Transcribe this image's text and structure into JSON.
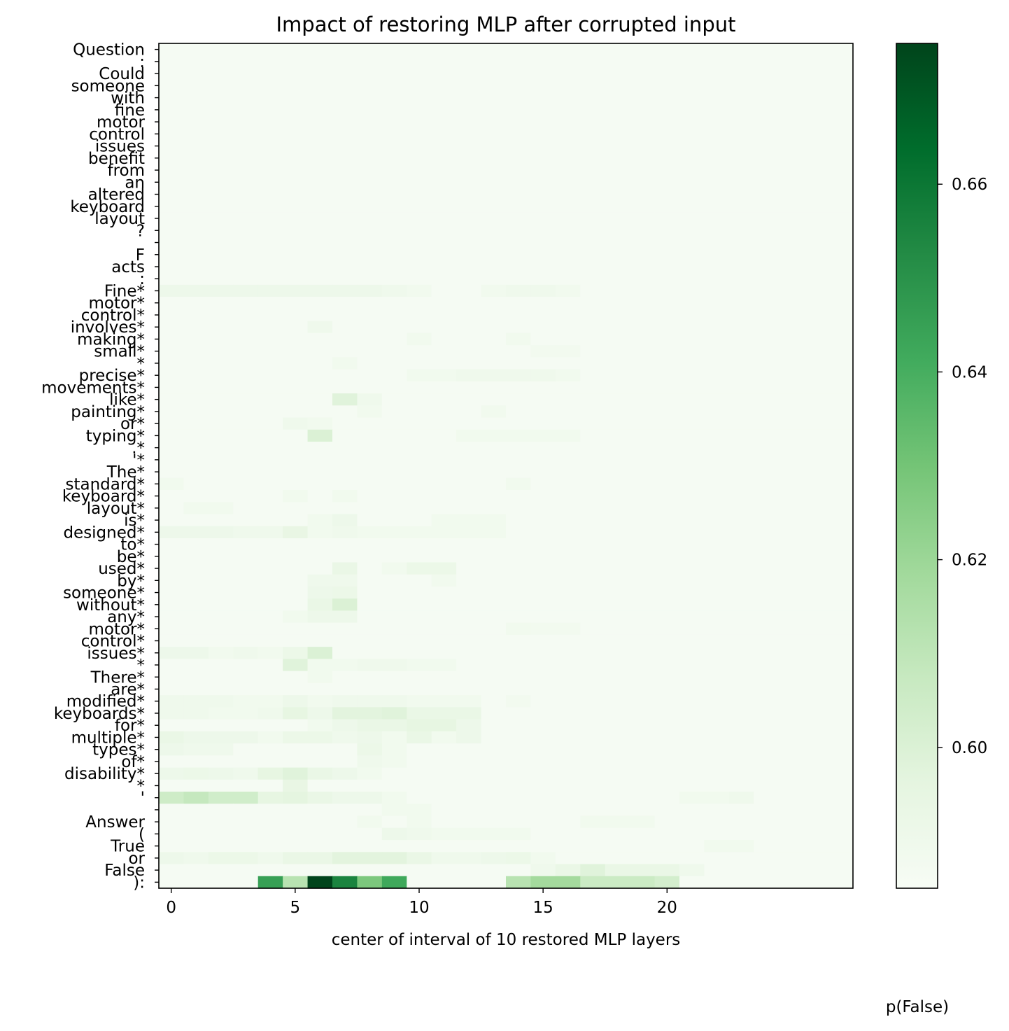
{
  "chart_data": {
    "type": "heatmap",
    "title": "Impact of restoring MLP after corrupted input",
    "xlabel": "center of interval of 10 restored MLP layers",
    "colorbar_label": "p(False)",
    "colormap": "Greens",
    "x_ticks": [
      0,
      5,
      10,
      15,
      20
    ],
    "x_range": [
      0,
      27
    ],
    "colorbar_ticks": [
      0.6,
      0.62,
      0.64,
      0.66
    ],
    "value_range": [
      0.585,
      0.675
    ],
    "rows": [
      "Question",
      ":",
      "Could",
      "someone",
      "with",
      "fine",
      "motor",
      "control",
      "issues",
      "benefit",
      "from",
      "an",
      "altered",
      "keyboard",
      "layout",
      "?",
      "",
      "F",
      "acts",
      ":",
      "Fine*",
      "motor*",
      "control*",
      "involves*",
      "making*",
      "small*",
      "*",
      "precise*",
      "movements*",
      "like*",
      "painting*",
      "or*",
      "typing*",
      ".*",
      "'*",
      "The*",
      "standard*",
      "keyboard*",
      "layout*",
      "is*",
      "designed*",
      "to*",
      "be*",
      "used*",
      "by*",
      "someone*",
      "without*",
      "any*",
      "motor*",
      "control*",
      "issues*",
      "*",
      "There*",
      "are*",
      "modified*",
      "keyboards*",
      "for*",
      "multiple*",
      "types*",
      "of*",
      "disability*",
      "*",
      "'",
      "",
      "Answer",
      "(",
      "True",
      "or",
      "False",
      "):"
    ],
    "baseline": 0.586,
    "highlights": [
      [
        20,
        0,
        0.591
      ],
      [
        20,
        1,
        0.591
      ],
      [
        20,
        2,
        0.591
      ],
      [
        20,
        3,
        0.591
      ],
      [
        20,
        4,
        0.591
      ],
      [
        20,
        5,
        0.591
      ],
      [
        20,
        6,
        0.591
      ],
      [
        20,
        7,
        0.591
      ],
      [
        20,
        8,
        0.591
      ],
      [
        20,
        9,
        0.59
      ],
      [
        20,
        10,
        0.589
      ],
      [
        20,
        13,
        0.589
      ],
      [
        20,
        14,
        0.59
      ],
      [
        20,
        15,
        0.59
      ],
      [
        20,
        16,
        0.589
      ],
      [
        23,
        6,
        0.59
      ],
      [
        24,
        10,
        0.589
      ],
      [
        24,
        14,
        0.589
      ],
      [
        25,
        15,
        0.588
      ],
      [
        25,
        16,
        0.588
      ],
      [
        26,
        7,
        0.589
      ],
      [
        27,
        10,
        0.589
      ],
      [
        27,
        11,
        0.589
      ],
      [
        27,
        12,
        0.59
      ],
      [
        27,
        13,
        0.59
      ],
      [
        27,
        14,
        0.59
      ],
      [
        27,
        15,
        0.59
      ],
      [
        27,
        16,
        0.589
      ],
      [
        29,
        7,
        0.598
      ],
      [
        29,
        8,
        0.59
      ],
      [
        30,
        8,
        0.589
      ],
      [
        30,
        13,
        0.589
      ],
      [
        31,
        5,
        0.59
      ],
      [
        31,
        6,
        0.589
      ],
      [
        32,
        6,
        0.6
      ],
      [
        32,
        12,
        0.589
      ],
      [
        32,
        13,
        0.589
      ],
      [
        32,
        14,
        0.589
      ],
      [
        32,
        15,
        0.589
      ],
      [
        32,
        16,
        0.589
      ],
      [
        36,
        0,
        0.589
      ],
      [
        36,
        14,
        0.589
      ],
      [
        37,
        5,
        0.589
      ],
      [
        37,
        7,
        0.589
      ],
      [
        38,
        1,
        0.589
      ],
      [
        38,
        2,
        0.589
      ],
      [
        39,
        6,
        0.589
      ],
      [
        39,
        7,
        0.591
      ],
      [
        39,
        11,
        0.589
      ],
      [
        39,
        12,
        0.589
      ],
      [
        39,
        13,
        0.589
      ],
      [
        40,
        0,
        0.591
      ],
      [
        40,
        1,
        0.591
      ],
      [
        40,
        2,
        0.591
      ],
      [
        40,
        3,
        0.59
      ],
      [
        40,
        4,
        0.59
      ],
      [
        40,
        5,
        0.594
      ],
      [
        40,
        6,
        0.589
      ],
      [
        40,
        7,
        0.59
      ],
      [
        40,
        8,
        0.589
      ],
      [
        40,
        9,
        0.589
      ],
      [
        40,
        10,
        0.589
      ],
      [
        40,
        11,
        0.589
      ],
      [
        40,
        12,
        0.589
      ],
      [
        40,
        13,
        0.589
      ],
      [
        43,
        7,
        0.593
      ],
      [
        43,
        9,
        0.589
      ],
      [
        43,
        10,
        0.592
      ],
      [
        43,
        11,
        0.592
      ],
      [
        44,
        6,
        0.59
      ],
      [
        44,
        7,
        0.59
      ],
      [
        44,
        11,
        0.589
      ],
      [
        45,
        6,
        0.591
      ],
      [
        45,
        7,
        0.592
      ],
      [
        46,
        6,
        0.593
      ],
      [
        46,
        7,
        0.6
      ],
      [
        47,
        5,
        0.589
      ],
      [
        47,
        6,
        0.591
      ],
      [
        47,
        7,
        0.591
      ],
      [
        48,
        14,
        0.589
      ],
      [
        48,
        15,
        0.588
      ],
      [
        48,
        16,
        0.588
      ],
      [
        50,
        0,
        0.591
      ],
      [
        50,
        1,
        0.591
      ],
      [
        50,
        2,
        0.589
      ],
      [
        50,
        3,
        0.59
      ],
      [
        50,
        4,
        0.589
      ],
      [
        50,
        5,
        0.592
      ],
      [
        50,
        6,
        0.6
      ],
      [
        51,
        5,
        0.598
      ],
      [
        51,
        6,
        0.589
      ],
      [
        51,
        7,
        0.589
      ],
      [
        51,
        8,
        0.59
      ],
      [
        51,
        9,
        0.59
      ],
      [
        51,
        10,
        0.589
      ],
      [
        51,
        11,
        0.589
      ],
      [
        52,
        6,
        0.589
      ],
      [
        54,
        0,
        0.59
      ],
      [
        54,
        1,
        0.59
      ],
      [
        54,
        2,
        0.59
      ],
      [
        54,
        3,
        0.589
      ],
      [
        54,
        4,
        0.589
      ],
      [
        54,
        5,
        0.591
      ],
      [
        54,
        6,
        0.589
      ],
      [
        54,
        7,
        0.59
      ],
      [
        54,
        8,
        0.59
      ],
      [
        54,
        9,
        0.59
      ],
      [
        54,
        10,
        0.589
      ],
      [
        54,
        11,
        0.589
      ],
      [
        54,
        12,
        0.589
      ],
      [
        54,
        14,
        0.588
      ],
      [
        55,
        0,
        0.59
      ],
      [
        55,
        1,
        0.59
      ],
      [
        55,
        2,
        0.589
      ],
      [
        55,
        3,
        0.589
      ],
      [
        55,
        4,
        0.59
      ],
      [
        55,
        5,
        0.595
      ],
      [
        55,
        6,
        0.591
      ],
      [
        55,
        7,
        0.597
      ],
      [
        55,
        8,
        0.597
      ],
      [
        55,
        9,
        0.598
      ],
      [
        55,
        10,
        0.593
      ],
      [
        55,
        11,
        0.593
      ],
      [
        55,
        12,
        0.593
      ],
      [
        56,
        6,
        0.589
      ],
      [
        56,
        7,
        0.591
      ],
      [
        56,
        8,
        0.593
      ],
      [
        56,
        9,
        0.593
      ],
      [
        56,
        10,
        0.595
      ],
      [
        56,
        11,
        0.595
      ],
      [
        56,
        12,
        0.591
      ],
      [
        57,
        0,
        0.593
      ],
      [
        57,
        1,
        0.591
      ],
      [
        57,
        2,
        0.591
      ],
      [
        57,
        3,
        0.591
      ],
      [
        57,
        4,
        0.589
      ],
      [
        57,
        5,
        0.592
      ],
      [
        57,
        6,
        0.592
      ],
      [
        57,
        7,
        0.59
      ],
      [
        57,
        8,
        0.591
      ],
      [
        57,
        9,
        0.589
      ],
      [
        57,
        10,
        0.593
      ],
      [
        57,
        11,
        0.589
      ],
      [
        57,
        12,
        0.591
      ],
      [
        58,
        0,
        0.591
      ],
      [
        58,
        1,
        0.59
      ],
      [
        58,
        2,
        0.59
      ],
      [
        58,
        8,
        0.592
      ],
      [
        58,
        9,
        0.589
      ],
      [
        59,
        8,
        0.59
      ],
      [
        59,
        9,
        0.589
      ],
      [
        60,
        0,
        0.591
      ],
      [
        60,
        1,
        0.592
      ],
      [
        60,
        2,
        0.591
      ],
      [
        60,
        3,
        0.59
      ],
      [
        60,
        4,
        0.595
      ],
      [
        60,
        5,
        0.598
      ],
      [
        60,
        6,
        0.593
      ],
      [
        60,
        7,
        0.591
      ],
      [
        60,
        8,
        0.589
      ],
      [
        61,
        5,
        0.594
      ],
      [
        62,
        0,
        0.605
      ],
      [
        62,
        1,
        0.608
      ],
      [
        62,
        2,
        0.604
      ],
      [
        62,
        3,
        0.604
      ],
      [
        62,
        4,
        0.595
      ],
      [
        62,
        5,
        0.596
      ],
      [
        62,
        6,
        0.593
      ],
      [
        62,
        7,
        0.591
      ],
      [
        62,
        8,
        0.591
      ],
      [
        62,
        9,
        0.589
      ],
      [
        62,
        21,
        0.589
      ],
      [
        62,
        22,
        0.589
      ],
      [
        62,
        23,
        0.59
      ],
      [
        63,
        9,
        0.589
      ],
      [
        63,
        10,
        0.589
      ],
      [
        64,
        8,
        0.589
      ],
      [
        64,
        10,
        0.589
      ],
      [
        64,
        17,
        0.589
      ],
      [
        64,
        18,
        0.589
      ],
      [
        64,
        19,
        0.589
      ],
      [
        65,
        9,
        0.591
      ],
      [
        65,
        10,
        0.59
      ],
      [
        65,
        11,
        0.589
      ],
      [
        65,
        12,
        0.589
      ],
      [
        65,
        13,
        0.589
      ],
      [
        65,
        14,
        0.589
      ],
      [
        66,
        22,
        0.589
      ],
      [
        66,
        23,
        0.589
      ],
      [
        67,
        0,
        0.591
      ],
      [
        67,
        1,
        0.59
      ],
      [
        67,
        2,
        0.592
      ],
      [
        67,
        3,
        0.592
      ],
      [
        67,
        4,
        0.59
      ],
      [
        67,
        5,
        0.593
      ],
      [
        67,
        6,
        0.593
      ],
      [
        67,
        7,
        0.597
      ],
      [
        67,
        8,
        0.597
      ],
      [
        67,
        9,
        0.597
      ],
      [
        67,
        10,
        0.593
      ],
      [
        67,
        11,
        0.59
      ],
      [
        67,
        12,
        0.59
      ],
      [
        67,
        13,
        0.591
      ],
      [
        67,
        14,
        0.592
      ],
      [
        67,
        15,
        0.589
      ],
      [
        68,
        15,
        0.59
      ],
      [
        68,
        16,
        0.593
      ],
      [
        68,
        17,
        0.598
      ],
      [
        68,
        18,
        0.593
      ],
      [
        68,
        19,
        0.593
      ],
      [
        68,
        20,
        0.593
      ],
      [
        68,
        21,
        0.59
      ],
      [
        69,
        4,
        0.645
      ],
      [
        69,
        5,
        0.612
      ],
      [
        69,
        6,
        0.675
      ],
      [
        69,
        7,
        0.655
      ],
      [
        69,
        8,
        0.628
      ],
      [
        69,
        9,
        0.642
      ],
      [
        69,
        14,
        0.612
      ],
      [
        69,
        15,
        0.618
      ],
      [
        69,
        16,
        0.618
      ],
      [
        69,
        17,
        0.606
      ],
      [
        69,
        18,
        0.606
      ],
      [
        69,
        19,
        0.606
      ],
      [
        69,
        20,
        0.603
      ]
    ]
  }
}
